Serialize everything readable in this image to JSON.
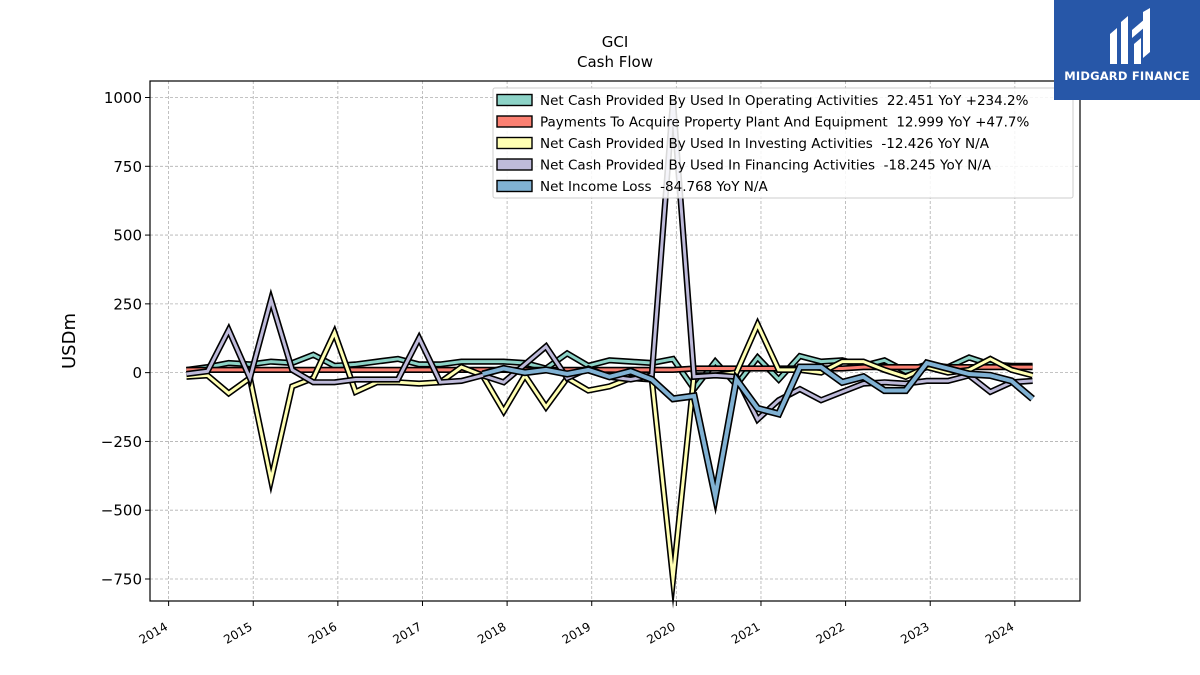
{
  "brand": {
    "name": "MIDGARD FINANCE",
    "bg_color": "#2757a8"
  },
  "chart_data": {
    "type": "line",
    "title": "GCI",
    "subtitle": "Cash Flow",
    "ylabel": "USDm",
    "xlabel": "",
    "ylim": [
      -830,
      1060
    ],
    "yticks": [
      -750,
      -500,
      -250,
      0,
      250,
      500,
      750,
      1000
    ],
    "xlim": [
      2013.78,
      2024.77
    ],
    "xticks": [
      "2014",
      "2015",
      "2016",
      "2017",
      "2018",
      "2019",
      "2020",
      "2021",
      "2022",
      "2023",
      "2024"
    ],
    "grid": true,
    "legend_position": "top-right",
    "series": [
      {
        "name": "Net Cash Provided By Used In Operating Activities  22.451 YoY +234.2%",
        "color": "#8dd3c7",
        "x": [
          2014.21,
          2014.46,
          2014.71,
          2014.96,
          2015.21,
          2015.46,
          2015.71,
          2015.96,
          2016.21,
          2016.46,
          2016.71,
          2016.96,
          2017.21,
          2017.46,
          2017.71,
          2017.96,
          2018.21,
          2018.46,
          2018.71,
          2018.96,
          2019.21,
          2019.46,
          2019.71,
          2019.96,
          2020.21,
          2020.46,
          2020.71,
          2020.96,
          2021.21,
          2021.46,
          2021.71,
          2021.96,
          2022.21,
          2022.46,
          2022.71,
          2022.96,
          2023.21,
          2023.46,
          2023.71,
          2023.96,
          2024.21
        ],
        "values": [
          10,
          20,
          35,
          30,
          40,
          35,
          65,
          25,
          30,
          40,
          50,
          30,
          30,
          40,
          40,
          40,
          35,
          15,
          70,
          25,
          45,
          40,
          35,
          50,
          -60,
          40,
          -45,
          55,
          -25,
          60,
          40,
          45,
          25,
          45,
          5,
          30,
          20,
          55,
          30,
          25,
          25
        ]
      },
      {
        "name": "Payments To Acquire Property Plant And Equipment  12.999 YoY +47.7%",
        "color": "#fb8072",
        "x": [
          2014.21,
          2014.46,
          2014.71,
          2014.96,
          2015.21,
          2015.46,
          2015.71,
          2015.96,
          2016.21,
          2016.46,
          2016.71,
          2016.96,
          2017.21,
          2017.46,
          2017.71,
          2017.96,
          2018.21,
          2018.46,
          2018.71,
          2018.96,
          2019.21,
          2019.46,
          2019.71,
          2019.96,
          2020.21,
          2020.46,
          2020.71,
          2020.96,
          2021.21,
          2021.46,
          2021.71,
          2021.96,
          2022.21,
          2022.46,
          2022.71,
          2022.96,
          2023.21,
          2023.46,
          2023.71,
          2023.96,
          2024.21
        ],
        "values": [
          10,
          10,
          10,
          10,
          10,
          10,
          10,
          10,
          10,
          10,
          10,
          10,
          10,
          10,
          10,
          10,
          10,
          10,
          10,
          10,
          10,
          10,
          10,
          10,
          15,
          15,
          15,
          15,
          15,
          15,
          15,
          15,
          20,
          20,
          20,
          20,
          20,
          20,
          20,
          20,
          20
        ]
      },
      {
        "name": "Net Cash Provided By Used In Investing Activities  -12.426 YoY N/A",
        "color": "#ffffb3",
        "x": [
          2014.21,
          2014.46,
          2014.71,
          2014.96,
          2015.21,
          2015.46,
          2015.71,
          2015.96,
          2016.21,
          2016.46,
          2016.71,
          2016.96,
          2017.21,
          2017.46,
          2017.71,
          2017.96,
          2018.21,
          2018.46,
          2018.71,
          2018.96,
          2019.21,
          2019.46,
          2019.71,
          2019.96,
          2020.21,
          2020.46,
          2020.71,
          2020.96,
          2021.21,
          2021.46,
          2021.71,
          2021.96,
          2022.21,
          2022.46,
          2022.71,
          2022.96,
          2023.21,
          2023.46,
          2023.71,
          2023.96,
          2024.21
        ],
        "values": [
          -15,
          -10,
          -75,
          -20,
          -390,
          -50,
          -20,
          145,
          -70,
          -35,
          -35,
          -40,
          -35,
          20,
          -10,
          -140,
          -10,
          -125,
          -20,
          -65,
          -50,
          -20,
          -25,
          -750,
          -10,
          -10,
          0,
          175,
          10,
          10,
          0,
          40,
          40,
          10,
          -15,
          20,
          0,
          10,
          50,
          10,
          -10
        ]
      },
      {
        "name": "Net Cash Provided By Used In Financing Activities  -18.245 YoY N/A",
        "color": "#bebada",
        "x": [
          2014.21,
          2014.46,
          2014.71,
          2014.96,
          2015.21,
          2015.46,
          2015.71,
          2015.96,
          2016.21,
          2016.46,
          2016.71,
          2016.96,
          2017.21,
          2017.46,
          2017.71,
          2017.96,
          2018.21,
          2018.46,
          2018.71,
          2018.96,
          2019.21,
          2019.46,
          2019.71,
          2019.96,
          2020.21,
          2020.46,
          2020.71,
          2020.96,
          2021.21,
          2021.46,
          2021.71,
          2021.96,
          2022.21,
          2022.46,
          2022.71,
          2022.96,
          2023.21,
          2023.46,
          2023.71,
          2023.96,
          2024.21
        ],
        "values": [
          -5,
          5,
          155,
          -20,
          265,
          10,
          -35,
          -35,
          -25,
          -25,
          -25,
          125,
          -35,
          -30,
          -10,
          -35,
          30,
          95,
          -20,
          15,
          -15,
          -25,
          -10,
          990,
          -15,
          -10,
          -15,
          -170,
          -100,
          -60,
          -100,
          -70,
          -40,
          -35,
          -40,
          -30,
          -30,
          -10,
          -70,
          -35,
          -30
        ]
      },
      {
        "name": "Net Income Loss  -84.768 YoY N/A",
        "color": "#80b1d3",
        "x": [
          2017.71,
          2017.96,
          2018.21,
          2018.46,
          2018.71,
          2018.96,
          2019.21,
          2019.46,
          2019.71,
          2019.96,
          2020.21,
          2020.46,
          2020.71,
          2020.96,
          2021.21,
          2021.46,
          2021.71,
          2021.96,
          2022.21,
          2022.46,
          2022.71,
          2022.96,
          2023.21,
          2023.46,
          2023.71,
          2023.96,
          2024.21
        ],
        "values": [
          -5,
          15,
          0,
          10,
          -5,
          10,
          -15,
          5,
          -25,
          -95,
          -85,
          -450,
          -25,
          -130,
          -150,
          20,
          20,
          -35,
          -15,
          -65,
          -65,
          35,
          15,
          -5,
          -10,
          -30,
          -95
        ]
      }
    ]
  }
}
